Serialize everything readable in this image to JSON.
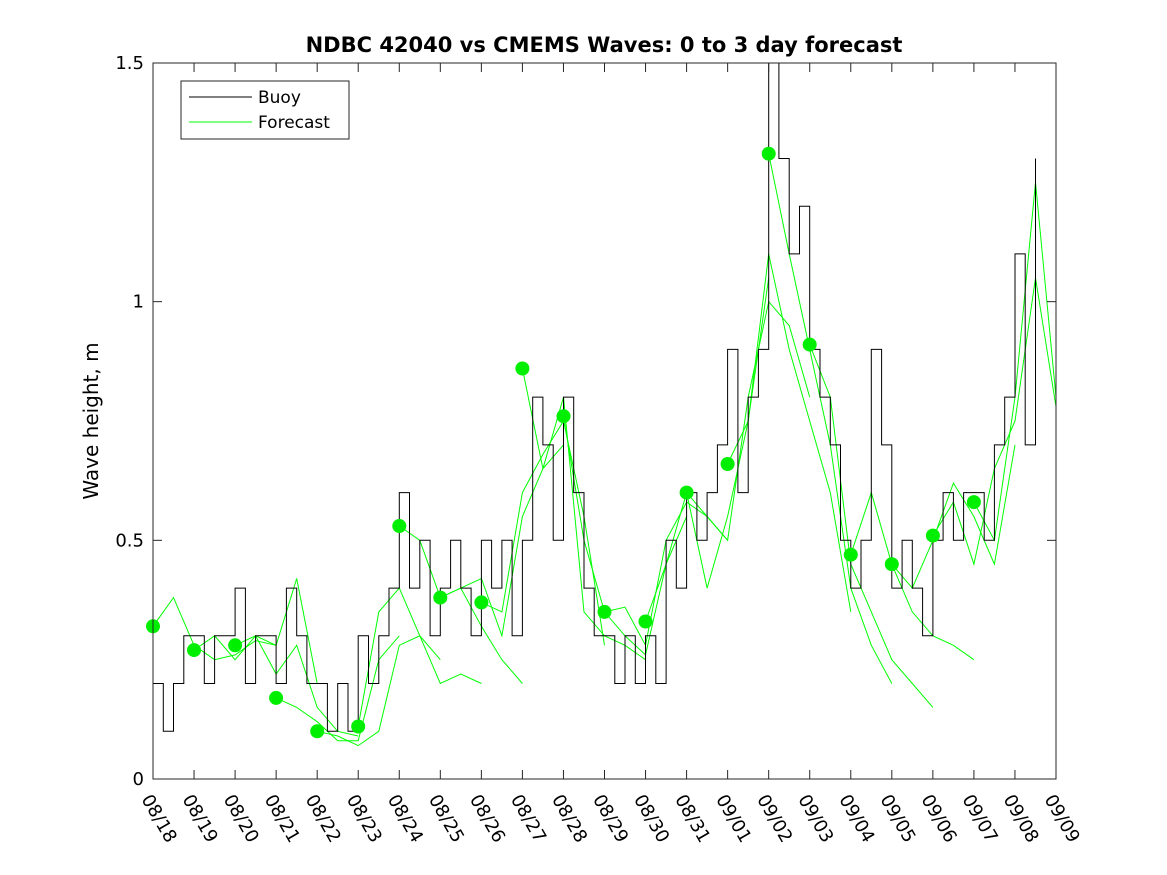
{
  "chart_data": {
    "type": "line",
    "title": "NDBC 42040 vs CMEMS Waves: 0 to 3 day forecast",
    "xlabel": "",
    "ylabel": "Wave height, m",
    "xlim": [
      "08/18",
      "09/09"
    ],
    "ylim": [
      0,
      1.5
    ],
    "x_ticks": [
      "08/18",
      "08/19",
      "08/20",
      "08/21",
      "08/22",
      "08/23",
      "08/24",
      "08/25",
      "08/26",
      "08/27",
      "08/28",
      "08/29",
      "08/30",
      "08/31",
      "09/01",
      "09/02",
      "09/03",
      "09/04",
      "09/05",
      "09/06",
      "09/07",
      "09/08",
      "09/09"
    ],
    "y_ticks": [
      0,
      0.5,
      1,
      1.5
    ],
    "y_tick_labels": [
      "0",
      "0.5",
      "1",
      "1.5"
    ],
    "grid": false,
    "legend": {
      "position": "top-left",
      "entries": [
        "Buoy",
        "Forecast"
      ]
    },
    "colors": {
      "buoy": "#000000",
      "forecast": "#00ff00",
      "forecast_marker": "#00ee00"
    },
    "series": [
      {
        "name": "Buoy",
        "x": [
          "08/18",
          "08/18 06:00",
          "08/18 12:00",
          "08/18 18:00",
          "08/19",
          "08/19 06:00",
          "08/19 12:00",
          "08/19 18:00",
          "08/20",
          "08/20 06:00",
          "08/20 12:00",
          "08/20 18:00",
          "08/21",
          "08/21 06:00",
          "08/21 12:00",
          "08/21 18:00",
          "08/22",
          "08/22 06:00",
          "08/22 12:00",
          "08/22 18:00",
          "08/23",
          "08/23 06:00",
          "08/23 12:00",
          "08/23 18:00",
          "08/24",
          "08/24 06:00",
          "08/24 12:00",
          "08/24 18:00",
          "08/25",
          "08/25 06:00",
          "08/25 12:00",
          "08/25 18:00",
          "08/26",
          "08/26 06:00",
          "08/26 12:00",
          "08/26 18:00",
          "08/27",
          "08/27 06:00",
          "08/27 12:00",
          "08/27 18:00",
          "08/28",
          "08/28 06:00",
          "08/28 12:00",
          "08/28 18:00",
          "08/29",
          "08/29 06:00",
          "08/29 12:00",
          "08/29 18:00",
          "08/30",
          "08/30 06:00",
          "08/30 12:00",
          "08/30 18:00",
          "08/31",
          "08/31 06:00",
          "08/31 12:00",
          "08/31 18:00",
          "09/01",
          "09/01 06:00",
          "09/01 12:00",
          "09/01 18:00",
          "09/02",
          "09/02 06:00",
          "09/02 12:00",
          "09/02 18:00",
          "09/03",
          "09/03 06:00",
          "09/03 12:00",
          "09/03 18:00",
          "09/04",
          "09/04 06:00",
          "09/04 12:00",
          "09/04 18:00",
          "09/05",
          "09/05 06:00",
          "09/05 12:00",
          "09/05 18:00",
          "09/06",
          "09/06 06:00",
          "09/06 12:00",
          "09/06 18:00",
          "09/07",
          "09/07 06:00",
          "09/07 12:00",
          "09/07 18:00",
          "09/08",
          "09/08 06:00",
          "09/08 12:00"
        ],
        "values": [
          0.2,
          0.1,
          0.2,
          0.3,
          0.3,
          0.2,
          0.3,
          0.3,
          0.4,
          0.2,
          0.3,
          0.3,
          0.2,
          0.4,
          0.3,
          0.2,
          0.2,
          0.1,
          0.2,
          0.1,
          0.3,
          0.2,
          0.3,
          0.4,
          0.6,
          0.4,
          0.5,
          0.3,
          0.4,
          0.5,
          0.4,
          0.3,
          0.5,
          0.4,
          0.5,
          0.3,
          0.5,
          0.8,
          0.7,
          0.5,
          0.8,
          0.6,
          0.4,
          0.3,
          0.3,
          0.2,
          0.3,
          0.2,
          0.3,
          0.2,
          0.5,
          0.4,
          0.6,
          0.5,
          0.6,
          0.7,
          0.9,
          0.6,
          0.8,
          0.9,
          1.5,
          1.3,
          1.1,
          1.2,
          0.9,
          0.8,
          0.7,
          0.5,
          0.4,
          0.5,
          0.9,
          0.7,
          0.4,
          0.5,
          0.4,
          0.3,
          0.5,
          0.6,
          0.5,
          0.6,
          0.6,
          0.5,
          0.7,
          0.8,
          1.1,
          0.7,
          1.3
        ]
      }
    ],
    "forecast_runs": [
      {
        "x": [
          "08/18",
          "08/18 12:00",
          "08/19",
          "08/19 12:00",
          "08/20",
          "08/20 12:00",
          "08/21"
        ],
        "values": [
          0.32,
          0.38,
          0.28,
          0.25,
          0.26,
          0.29,
          0.28
        ]
      },
      {
        "x": [
          "08/19",
          "08/19 12:00",
          "08/20",
          "08/20 12:00",
          "08/21",
          "08/21 12:00",
          "08/22"
        ],
        "values": [
          0.27,
          0.3,
          0.25,
          0.3,
          0.28,
          0.42,
          0.2
        ]
      },
      {
        "x": [
          "08/20",
          "08/20 12:00",
          "08/21",
          "08/21 12:00",
          "08/22",
          "08/22 12:00",
          "08/23"
        ],
        "values": [
          0.28,
          0.3,
          0.22,
          0.28,
          0.15,
          0.1,
          0.09
        ]
      },
      {
        "x": [
          "08/21",
          "08/21 12:00",
          "08/22",
          "08/22 12:00",
          "08/23",
          "08/23 12:00",
          "08/24"
        ],
        "values": [
          0.17,
          0.15,
          0.12,
          0.08,
          0.08,
          0.25,
          0.3
        ]
      },
      {
        "x": [
          "08/22",
          "08/22 12:00",
          "08/23",
          "08/23 12:00",
          "08/24",
          "08/24 12:00",
          "08/25"
        ],
        "values": [
          0.1,
          0.09,
          0.07,
          0.1,
          0.28,
          0.3,
          0.25
        ]
      },
      {
        "x": [
          "08/23",
          "08/23 12:00",
          "08/24",
          "08/24 12:00",
          "08/25",
          "08/25 12:00",
          "08/26"
        ],
        "values": [
          0.11,
          0.35,
          0.4,
          0.3,
          0.2,
          0.22,
          0.2
        ]
      },
      {
        "x": [
          "08/24",
          "08/24 12:00",
          "08/25",
          "08/25 12:00",
          "08/26",
          "08/26 12:00",
          "08/27"
        ],
        "values": [
          0.53,
          0.5,
          0.38,
          0.4,
          0.32,
          0.25,
          0.2
        ]
      },
      {
        "x": [
          "08/25",
          "08/25 12:00",
          "08/26",
          "08/26 12:00",
          "08/27",
          "08/27 12:00",
          "08/28"
        ],
        "values": [
          0.38,
          0.4,
          0.42,
          0.3,
          0.55,
          0.65,
          0.7
        ]
      },
      {
        "x": [
          "08/26",
          "08/26 12:00",
          "08/27",
          "08/27 12:00",
          "08/28",
          "08/28 12:00",
          "08/29"
        ],
        "values": [
          0.37,
          0.35,
          0.6,
          0.68,
          0.75,
          0.55,
          0.28
        ]
      },
      {
        "x": [
          "08/27",
          "08/27 12:00",
          "08/28",
          "08/28 12:00",
          "08/29",
          "08/29 12:00",
          "08/30"
        ],
        "values": [
          0.86,
          0.65,
          0.8,
          0.35,
          0.3,
          0.28,
          0.25
        ]
      },
      {
        "x": [
          "08/28",
          "08/28 12:00",
          "08/29",
          "08/29 12:00",
          "08/30",
          "08/30 12:00",
          "08/31"
        ],
        "values": [
          0.76,
          0.5,
          0.35,
          0.3,
          0.26,
          0.45,
          0.55
        ]
      },
      {
        "x": [
          "08/29",
          "08/29 12:00",
          "08/30",
          "08/30 12:00",
          "08/31",
          "08/31 12:00",
          "09/01"
        ],
        "values": [
          0.35,
          0.36,
          0.28,
          0.5,
          0.58,
          0.55,
          0.5
        ]
      },
      {
        "x": [
          "08/30",
          "08/30 12:00",
          "08/31",
          "08/31 12:00",
          "09/01",
          "09/01 12:00",
          "09/02"
        ],
        "values": [
          0.33,
          0.45,
          0.6,
          0.4,
          0.55,
          0.75,
          1.05
        ]
      },
      {
        "x": [
          "08/31",
          "08/31 12:00",
          "09/01",
          "09/01 12:00",
          "09/02",
          "09/02 12:00",
          "09/03"
        ],
        "values": [
          0.6,
          0.55,
          0.5,
          0.8,
          1.0,
          0.95,
          0.8
        ]
      },
      {
        "x": [
          "09/01",
          "09/01 12:00",
          "09/02",
          "09/02 12:00",
          "09/03",
          "09/03 12:00",
          "09/04"
        ],
        "values": [
          0.66,
          0.75,
          1.1,
          0.9,
          0.75,
          0.6,
          0.35
        ]
      },
      {
        "x": [
          "09/02",
          "09/02 12:00",
          "09/03",
          "09/03 12:00",
          "09/04",
          "09/04 12:00",
          "09/05"
        ],
        "values": [
          1.31,
          1.1,
          0.9,
          0.7,
          0.4,
          0.28,
          0.2
        ]
      },
      {
        "x": [
          "09/03",
          "09/03 12:00",
          "09/04",
          "09/04 12:00",
          "09/05",
          "09/05 12:00",
          "09/06"
        ],
        "values": [
          0.91,
          0.8,
          0.45,
          0.35,
          0.25,
          0.2,
          0.15
        ]
      },
      {
        "x": [
          "09/04",
          "09/04 12:00",
          "09/05",
          "09/05 12:00",
          "09/06",
          "09/06 12:00",
          "09/07"
        ],
        "values": [
          0.47,
          0.6,
          0.45,
          0.35,
          0.3,
          0.28,
          0.25
        ]
      },
      {
        "x": [
          "09/05",
          "09/05 12:00",
          "09/06",
          "09/06 12:00",
          "09/07",
          "09/07 12:00",
          "09/08"
        ],
        "values": [
          0.45,
          0.4,
          0.5,
          0.62,
          0.55,
          0.45,
          0.7
        ]
      },
      {
        "x": [
          "09/06",
          "09/06 12:00",
          "09/07",
          "09/07 12:00",
          "09/08",
          "09/08 12:00",
          "09/09"
        ],
        "values": [
          0.51,
          0.58,
          0.45,
          0.65,
          0.75,
          1.05,
          0.78
        ]
      },
      {
        "x": [
          "09/07",
          "09/07 12:00",
          "09/08",
          "09/08 12:00",
          "09/09"
        ],
        "values": [
          0.58,
          0.5,
          0.8,
          1.25,
          0.8
        ]
      }
    ]
  }
}
